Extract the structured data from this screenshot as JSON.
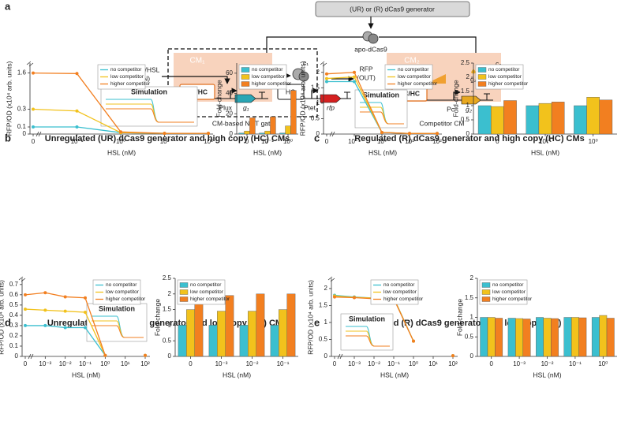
{
  "figure": {
    "panel_a": {
      "label": "a",
      "generator": "(UR) or (R) dCas9 generator",
      "apo": "apo-dCas9",
      "cm1": "CM₁",
      "input": "LuxR/HSL",
      "input_note": "(IN)",
      "promoter_box_1": "LC/HC",
      "plux": "Plux",
      "g1_gene": "g₁",
      "g1_guide": "g₁",
      "hc": "HC",
      "ptet": "Ptet",
      "rfp": "rfp",
      "c1": "c₁",
      "not_gate": "CM-based NOT gate",
      "output": "RFP",
      "output_note": "(OUT)",
      "cm2": "CM₂",
      "promoter_box_2": "LC/HC",
      "pc": "Pc",
      "g2_gene": "g₂",
      "g2_guide": "g₂",
      "c2": "c₂",
      "competitor": "Competitor CM"
    },
    "panels": [
      {
        "label": "b",
        "title": "Unregulated  (UR) dCas9 generator  and high copy (HC) CMs"
      },
      {
        "label": "c",
        "title": "Regulated  (R) dCas9 generator  and high copy (HC) CMs"
      },
      {
        "label": "d",
        "title": "Unregulated  (UR) dCas9 generator  and low copy (LC) CMs"
      },
      {
        "label": "e",
        "title": "Regulated  (R) dCas9 generator  and low copy (LC) CMs"
      }
    ]
  },
  "chart_data": [
    {
      "type": "line",
      "xlabel": "HSL (nM)",
      "ylabel": "RFP/OD (x10⁴ arb. units)",
      "annotation": "Simulation",
      "axis_break": true,
      "legend": "upper center",
      "categories": [
        "0",
        "10⁻¹",
        "10⁰",
        "10¹",
        "10²"
      ],
      "ylim": [
        0,
        1.8
      ],
      "yticks": [
        0,
        0.1,
        0.3,
        1.6
      ],
      "series": [
        {
          "name": "no competitor",
          "color": "#3bbfcf",
          "values": [
            0.1,
            0.1,
            0.02,
            0.01,
            0.01
          ]
        },
        {
          "name": "low competitor",
          "color": "#f2c21c",
          "values": [
            0.3,
            0.28,
            0.02,
            0.01,
            0.01
          ]
        },
        {
          "name": "higher competitor",
          "color": "#f27f20",
          "values": [
            1.6,
            1.58,
            0.03,
            0.01,
            0.01
          ]
        }
      ]
    },
    {
      "type": "bar",
      "xlabel": "HSL (nM)",
      "ylabel": "Fold-change",
      "legend": "upper left",
      "categories": [
        "0",
        "10⁻¹",
        "10⁰"
      ],
      "ylim": [
        0,
        70
      ],
      "yticks": [
        0,
        20,
        40,
        60
      ],
      "series": [
        {
          "name": "no competitor",
          "color": "#3bbfcf",
          "values": [
            1,
            1,
            1
          ]
        },
        {
          "name": "low competitor",
          "color": "#f2c21c",
          "values": [
            3,
            3,
            8
          ]
        },
        {
          "name": "higher competitor",
          "color": "#f27f20",
          "values": [
            16,
            17,
            43
          ]
        }
      ]
    },
    {
      "type": "line",
      "xlabel": "HSL (nM)",
      "ylabel": "RFP/OD (x10⁴ arb. units)",
      "annotation": "Simulation",
      "axis_break": true,
      "legend": "upper right",
      "categories": [
        "0",
        "10⁻¹",
        "10⁰",
        "10¹",
        "10²"
      ],
      "ylim": [
        0,
        2.3
      ],
      "yticks": [
        0,
        0.5,
        1,
        1.5,
        2
      ],
      "series": [
        {
          "name": "no competitor",
          "color": "#3bbfcf",
          "values": [
            1.7,
            1.7,
            0.05,
            0.02,
            0.02
          ]
        },
        {
          "name": "low competitor",
          "color": "#f2c21c",
          "values": [
            1.8,
            1.85,
            0.05,
            0.02,
            0.02
          ]
        },
        {
          "name": "higher competitor",
          "color": "#f27f20",
          "values": [
            1.95,
            2.0,
            0.05,
            0.02,
            0.02
          ]
        }
      ]
    },
    {
      "type": "bar",
      "xlabel": "HSL (nM)",
      "ylabel": "Fold-change",
      "legend": "upper left",
      "categories": [
        "0",
        "10⁻¹",
        "10⁰"
      ],
      "ylim": [
        0,
        2.5
      ],
      "yticks": [
        0,
        0.5,
        1,
        1.5,
        2,
        2.5
      ],
      "series": [
        {
          "name": "no competitor",
          "color": "#3bbfcf",
          "values": [
            1,
            1,
            1
          ]
        },
        {
          "name": "low competitor",
          "color": "#f2c21c",
          "values": [
            0.97,
            1.08,
            1.3
          ]
        },
        {
          "name": "higher competitor",
          "color": "#f27f20",
          "values": [
            1.18,
            1.13,
            1.2
          ]
        }
      ]
    },
    {
      "type": "line",
      "xlabel": "HSL (nM)",
      "ylabel": "RFP/OD (x10⁴ arb. units)",
      "annotation": "Simulation",
      "axis_break": true,
      "legend": "upper right",
      "categories": [
        "0",
        "10⁻³",
        "10⁻²",
        "10⁻¹",
        "10⁰",
        "10¹",
        "10²"
      ],
      "ylim": [
        0,
        0.76
      ],
      "yticks": [
        0,
        0.1,
        0.2,
        0.3,
        0.4,
        0.5,
        0.6,
        0.7
      ],
      "series": [
        {
          "name": "no competitor",
          "color": "#3bbfcf",
          "values": [
            0.3,
            0.3,
            0.28,
            0.28,
            0.01,
            null,
            0.01
          ]
        },
        {
          "name": "low competitor",
          "color": "#f2c21c",
          "values": [
            0.46,
            0.45,
            0.44,
            0.43,
            0.01,
            null,
            0.01
          ]
        },
        {
          "name": "higher competitor",
          "color": "#f27f20",
          "values": [
            0.6,
            0.62,
            0.58,
            0.57,
            0.01,
            null,
            0.01
          ]
        }
      ]
    },
    {
      "type": "bar",
      "xlabel": "HSL (nM)",
      "ylabel": "Fold-change",
      "legend": "upper left",
      "categories": [
        "0",
        "10⁻³",
        "10⁻²",
        "10⁻¹"
      ],
      "ylim": [
        0,
        2.5
      ],
      "yticks": [
        0,
        0.5,
        1,
        1.5,
        2,
        2.5
      ],
      "series": [
        {
          "name": "no competitor",
          "color": "#3bbfcf",
          "values": [
            1,
            1,
            1,
            1
          ]
        },
        {
          "name": "low competitor",
          "color": "#f2c21c",
          "values": [
            1.5,
            1.45,
            1.45,
            1.5
          ]
        },
        {
          "name": "higher competitor",
          "color": "#f27f20",
          "values": [
            1.9,
            1.95,
            2.0,
            2.0
          ]
        }
      ]
    },
    {
      "type": "line",
      "xlabel": "HSL (nM)",
      "ylabel": "RFP/OD (x10⁴ arb. units)",
      "annotation": "Simulation",
      "axis_break": true,
      "legend": "upper center",
      "categories": [
        "0",
        "10⁻³",
        "10⁻²",
        "10⁻¹",
        "10⁰",
        "10¹",
        "10²"
      ],
      "ylim": [
        0,
        2.3
      ],
      "yticks": [
        0,
        0.5,
        1,
        1.5,
        2
      ],
      "series": [
        {
          "name": "no competitor",
          "color": "#3bbfcf",
          "values": [
            1.8,
            1.75,
            1.72,
            1.73,
            0.45,
            null,
            0.02
          ]
        },
        {
          "name": "low competitor",
          "color": "#f2c21c",
          "values": [
            1.78,
            1.74,
            1.72,
            1.72,
            0.45,
            null,
            0.02
          ]
        },
        {
          "name": "higher competitor",
          "color": "#f27f20",
          "values": [
            1.75,
            1.73,
            1.7,
            1.7,
            0.45,
            null,
            0.02
          ]
        }
      ]
    },
    {
      "type": "bar",
      "xlabel": "HSL (nM)",
      "ylabel": "Fold-change",
      "legend": "upper left",
      "categories": [
        "0",
        "10⁻³",
        "10⁻²",
        "10⁻¹",
        "10⁰"
      ],
      "ylim": [
        0,
        2
      ],
      "yticks": [
        0,
        0.5,
        1,
        1.5,
        2
      ],
      "series": [
        {
          "name": "no competitor",
          "color": "#3bbfcf",
          "values": [
            1,
            0.98,
            1,
            1,
            1
          ]
        },
        {
          "name": "low competitor",
          "color": "#f2c21c",
          "values": [
            1,
            0.97,
            0.98,
            1,
            1.05
          ]
        },
        {
          "name": "higher competitor",
          "color": "#f27f20",
          "values": [
            0.98,
            0.96,
            0.97,
            0.99,
            0.98
          ]
        }
      ]
    }
  ]
}
